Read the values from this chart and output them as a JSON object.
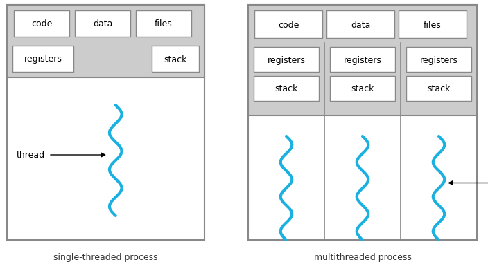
{
  "fig_width": 7.04,
  "fig_height": 4.06,
  "dpi": 100,
  "bg_color": "#ffffff",
  "box_bg": "#ffffff",
  "shared_bg": "#cccccc",
  "border_color": "#888888",
  "thread_color": "#1ab0e0",
  "text_color": "#000000",
  "caption_color": "#333333",
  "single_caption": "single-threaded process",
  "multi_caption": "multithreaded process",
  "single_shared_labels": [
    "code",
    "data",
    "files"
  ],
  "single_thread_labels": [
    "registers",
    "stack"
  ],
  "multi_shared_labels": [
    "code",
    "data",
    "files"
  ],
  "multi_thread_labels_row1": [
    "registers",
    "registers",
    "registers"
  ],
  "multi_thread_labels_row2": [
    "stack",
    "stack",
    "stack"
  ]
}
